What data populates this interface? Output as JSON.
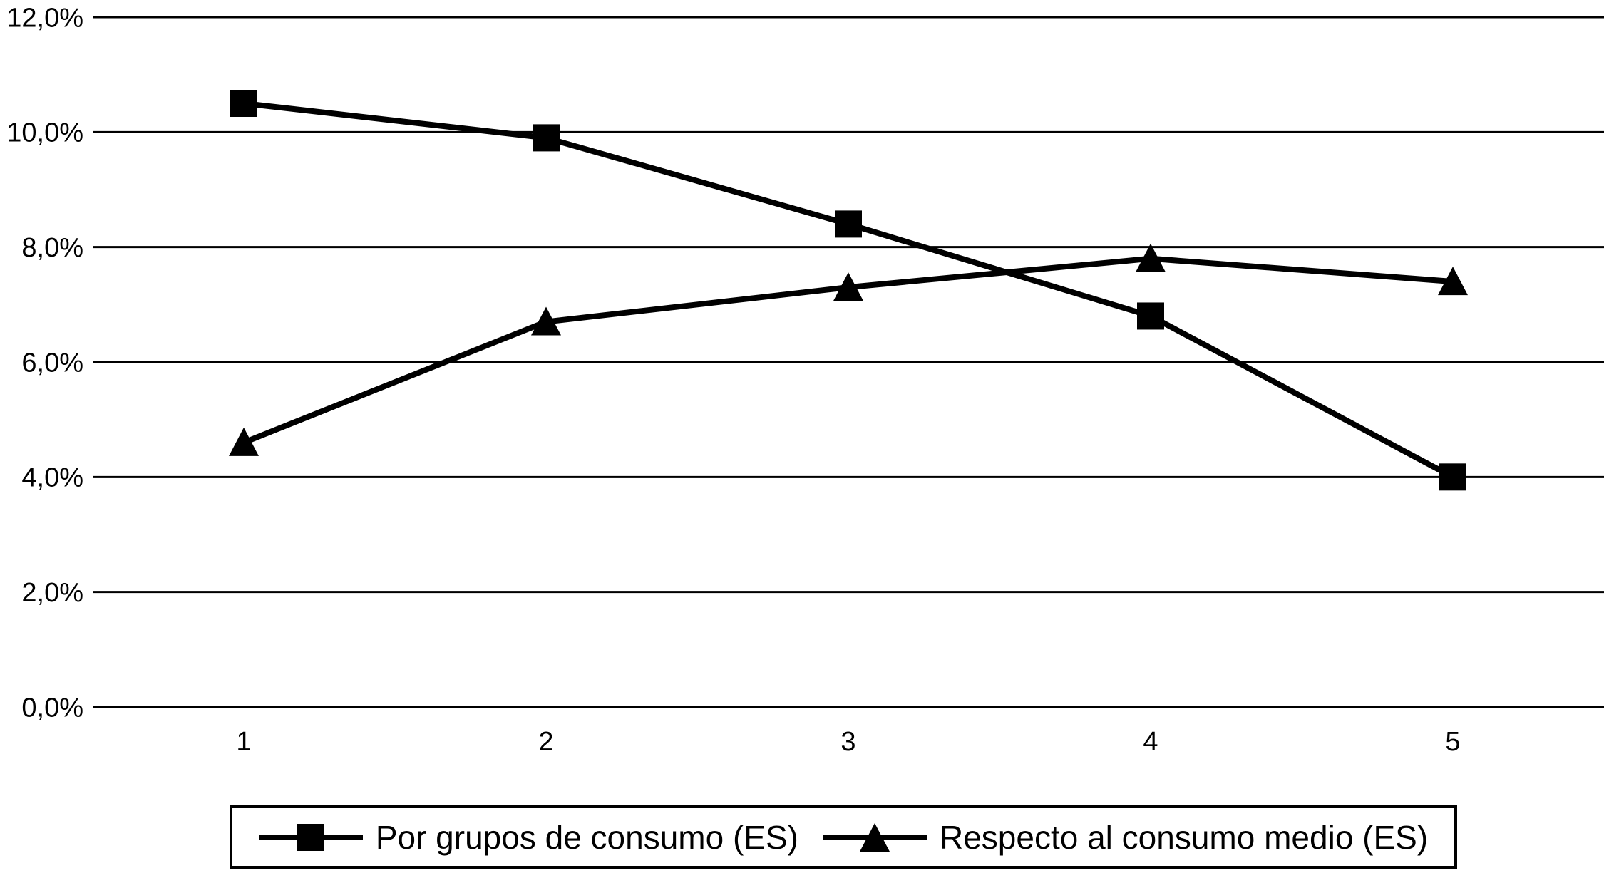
{
  "chart_data": {
    "type": "line",
    "categories": [
      "1",
      "2",
      "3",
      "4",
      "5"
    ],
    "series": [
      {
        "name": "Por grupos de consumo (ES)",
        "marker": "square",
        "values": [
          10.5,
          9.9,
          8.4,
          6.8,
          4.0
        ]
      },
      {
        "name": "Respecto al consumo medio (ES)",
        "marker": "triangle",
        "values": [
          4.6,
          6.7,
          7.3,
          7.8,
          7.4
        ]
      }
    ],
    "title": "",
    "xlabel": "",
    "ylabel": "",
    "ylim": [
      0,
      12
    ],
    "ytick_values": [
      0,
      2,
      4,
      6,
      8,
      10,
      12
    ],
    "ytick_labels": [
      "0,0%",
      "2,0%",
      "4,0%",
      "6,0%",
      "8,0%",
      "10,0%",
      "12,0%"
    ],
    "grid": "horizontal",
    "legend_position": "bottom",
    "colors": {
      "series": "#000000",
      "gridline": "#000000",
      "background": "#ffffff",
      "text": "#000000"
    }
  }
}
